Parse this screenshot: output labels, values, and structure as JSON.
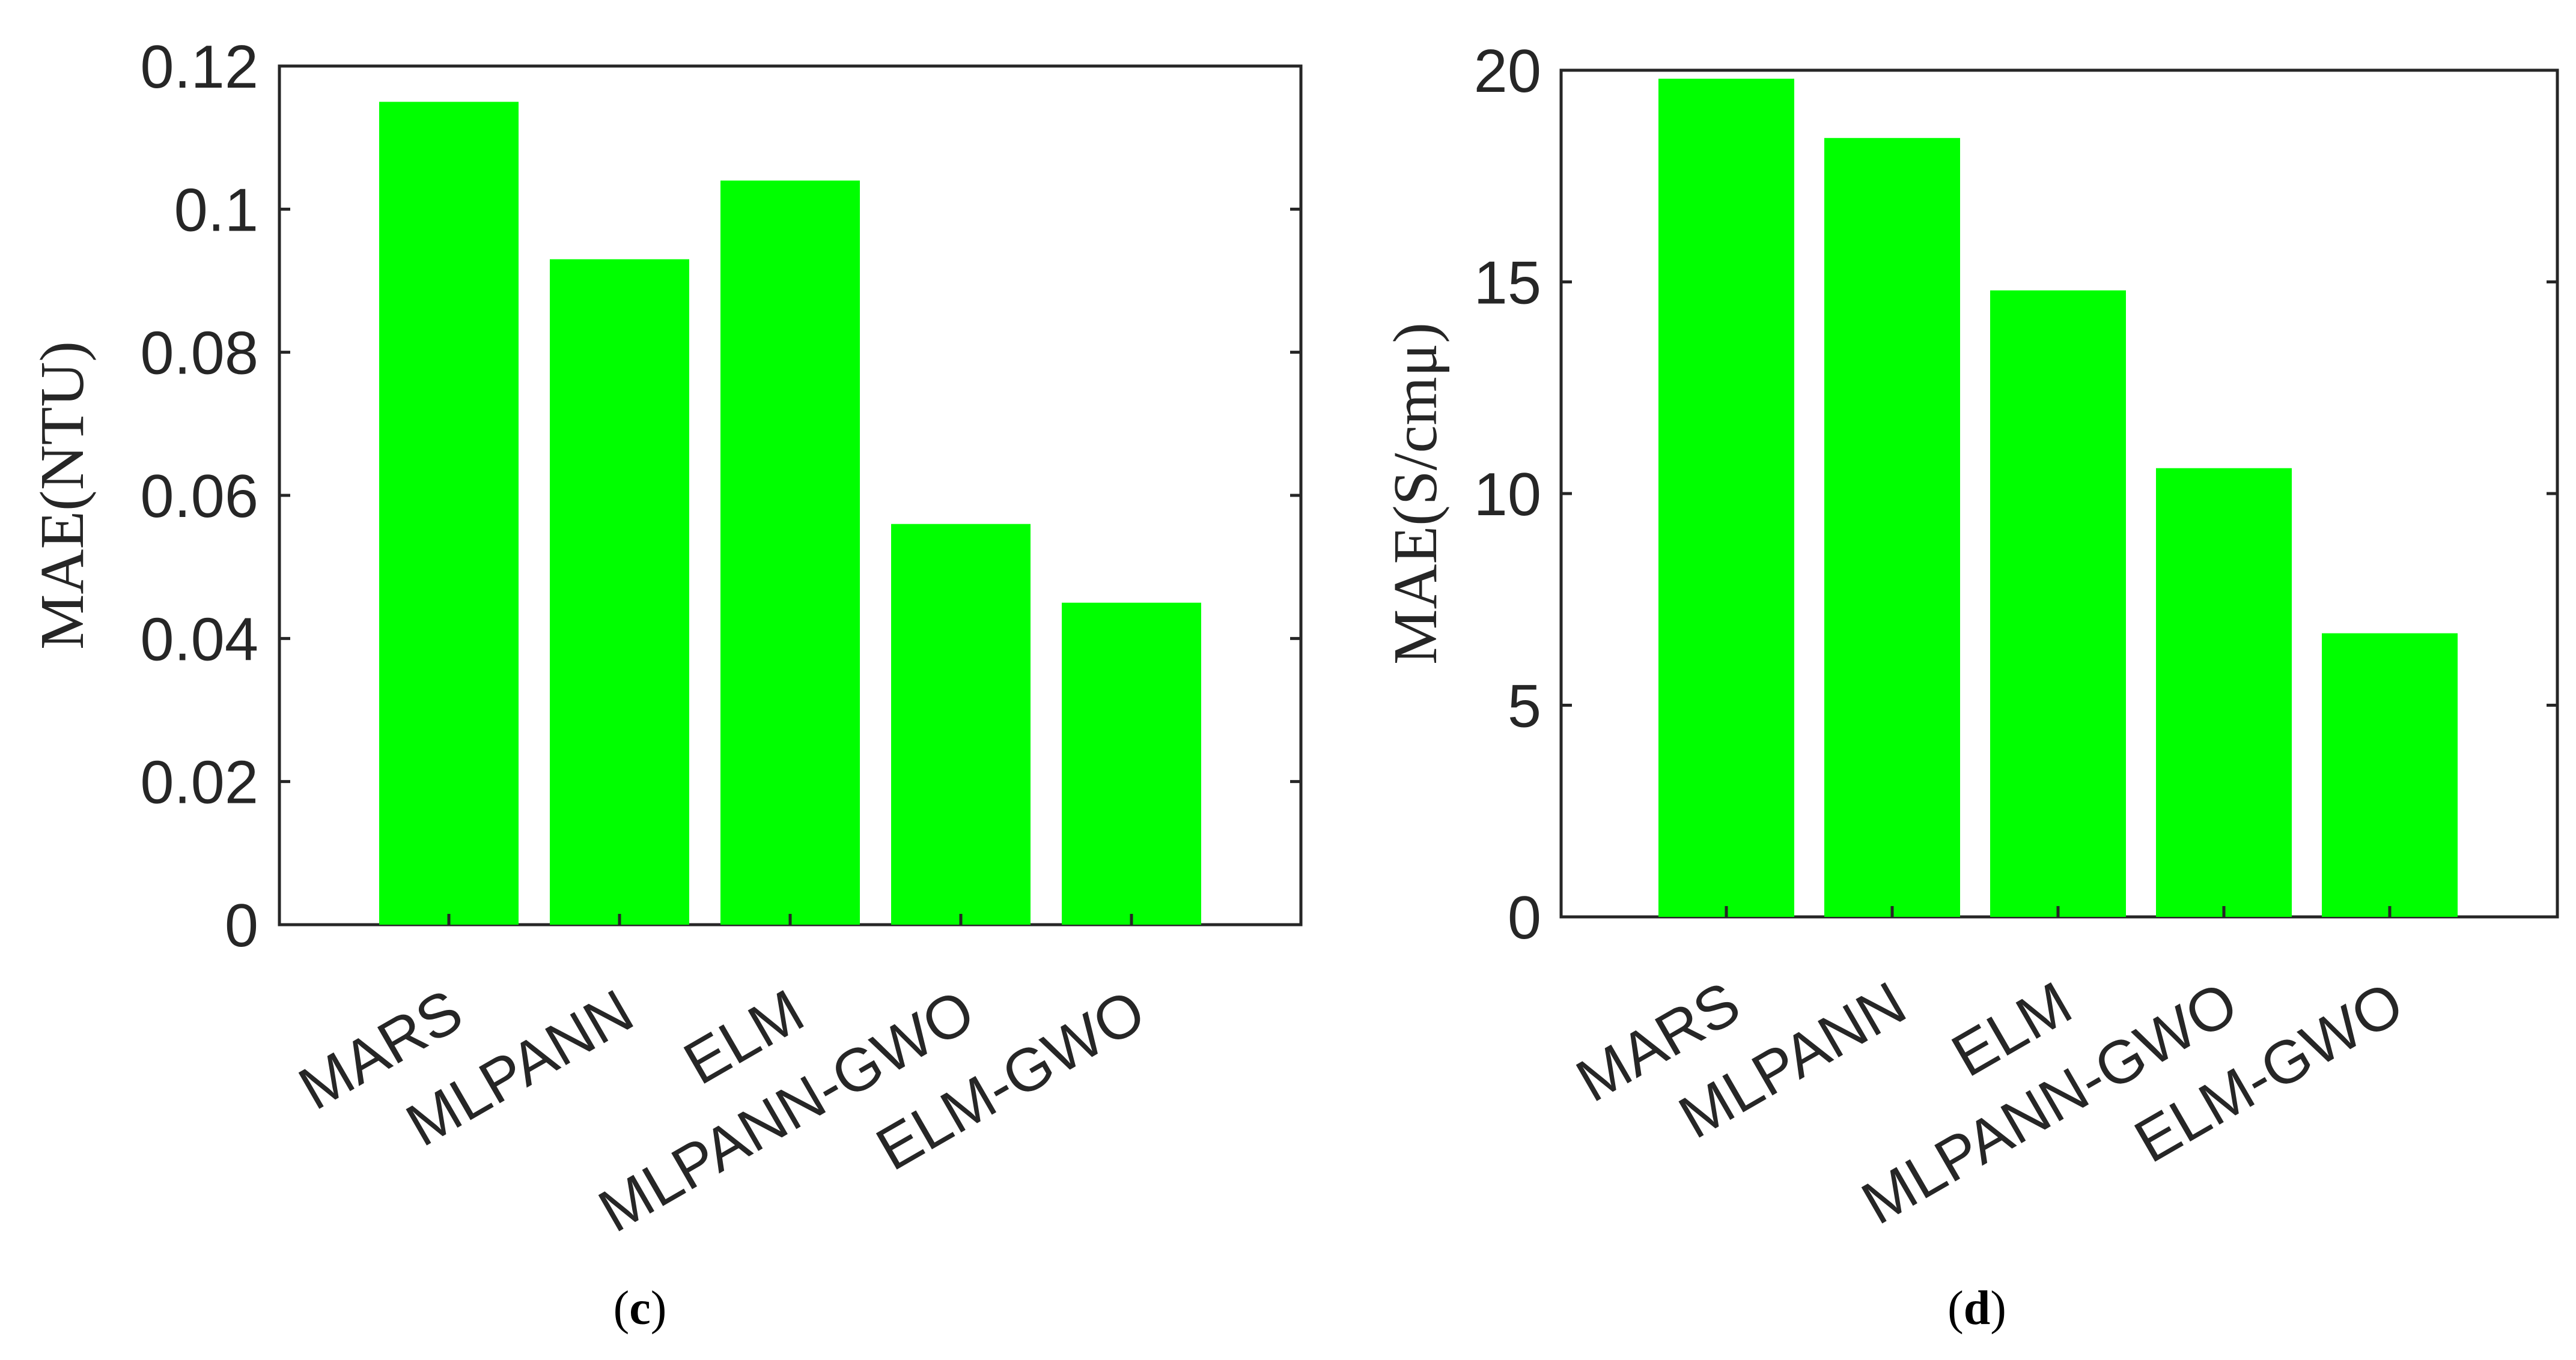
{
  "chart_data": [
    {
      "type": "bar",
      "panel_label": {
        "open": "(",
        "letter": "c",
        "close": ")"
      },
      "categories": [
        "MARS",
        "MLPANN",
        "ELM",
        "MLPANN-GWO",
        "ELM-GWO"
      ],
      "values": [
        0.115,
        0.093,
        0.104,
        0.056,
        0.045
      ],
      "ylabel": "MAE(NTU)",
      "xlabel": "",
      "ylim": [
        0,
        0.12
      ],
      "yticks": [
        0,
        0.02,
        0.04,
        0.06,
        0.08,
        0.1,
        0.12
      ],
      "ytick_labels": [
        "0",
        "0.02",
        "0.04",
        "0.06",
        "0.08",
        "0.1",
        "0.12"
      ],
      "bar_color": "#00ff00",
      "grid": false
    },
    {
      "type": "bar",
      "panel_label": {
        "open": "(",
        "letter": "d",
        "close": ")"
      },
      "categories": [
        "MARS",
        "MLPANN",
        "ELM",
        "MLPANN-GWO",
        "ELM-GWO"
      ],
      "values": [
        19.8,
        18.4,
        14.8,
        10.6,
        6.7
      ],
      "ylabel": "MAE(S/cmμ)",
      "xlabel": "",
      "ylim": [
        0,
        20
      ],
      "yticks": [
        0,
        5,
        10,
        15,
        20
      ],
      "ytick_labels": [
        "0",
        "5",
        "10",
        "15",
        "20"
      ],
      "bar_color": "#00ff00",
      "grid": false
    }
  ]
}
